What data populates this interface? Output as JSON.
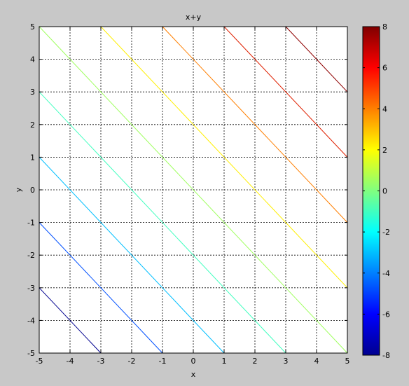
{
  "chart_data": {
    "type": "contour",
    "title": "x+y",
    "xlabel": "x",
    "ylabel": "y",
    "xlim": [
      -5,
      5
    ],
    "ylim": [
      -5,
      5
    ],
    "grid": true,
    "xticks": [
      -5,
      -4,
      -3,
      -2,
      -1,
      0,
      1,
      2,
      3,
      4,
      5
    ],
    "yticks": [
      -5,
      -4,
      -3,
      -2,
      -1,
      0,
      1,
      2,
      3,
      4,
      5
    ],
    "levels": [
      {
        "level": -8,
        "color": "#00008f"
      },
      {
        "level": -6,
        "color": "#0050ff"
      },
      {
        "level": -4,
        "color": "#00bfff"
      },
      {
        "level": -2,
        "color": "#40ffbf"
      },
      {
        "level": 0,
        "color": "#a0ff60"
      },
      {
        "level": 2,
        "color": "#ffef00"
      },
      {
        "level": 4,
        "color": "#ff7f00"
      },
      {
        "level": 6,
        "color": "#df2000"
      },
      {
        "level": 8,
        "color": "#8f0000"
      }
    ],
    "colorbar": {
      "clim": [
        -8,
        8
      ],
      "ticks": [
        -8,
        -6,
        -4,
        -2,
        0,
        2,
        4,
        6,
        8
      ],
      "colormap": "jet",
      "placement": "right"
    }
  }
}
